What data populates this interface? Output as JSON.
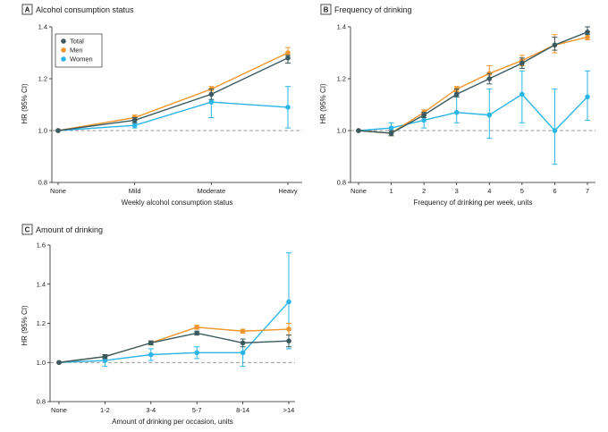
{
  "colors": {
    "Total": "#3a5a60",
    "Men": "#f0962d",
    "Women": "#2bb5e6"
  },
  "chart_data": [
    {
      "panel_label": "A",
      "title": "Alcohol consumption status",
      "type": "line",
      "xlabel": "Weekly alcohol consumption status",
      "ylabel": "HR (95% CI)",
      "categories": [
        "None",
        "Mild",
        "Moderate",
        "Heavy"
      ],
      "ylim": [
        0.8,
        1.4
      ],
      "yticks": [
        "0.8",
        "1.0",
        "1.2",
        "1.4"
      ],
      "reference_line": 1.0,
      "legend": {
        "placement": "top-left",
        "entries": [
          "Total",
          "Men",
          "Women"
        ]
      },
      "series": [
        {
          "name": "Total",
          "values": [
            1.0,
            1.04,
            1.14,
            1.28
          ],
          "lower": [
            1.0,
            1.03,
            1.12,
            1.26
          ],
          "upper": [
            1.0,
            1.05,
            1.16,
            1.29
          ]
        },
        {
          "name": "Men",
          "values": [
            1.0,
            1.05,
            1.16,
            1.3
          ],
          "lower": [
            1.0,
            1.04,
            1.14,
            1.29
          ],
          "upper": [
            1.0,
            1.06,
            1.17,
            1.32
          ]
        },
        {
          "name": "Women",
          "values": [
            1.0,
            1.02,
            1.11,
            1.09
          ],
          "lower": [
            1.0,
            1.01,
            1.05,
            1.01
          ],
          "upper": [
            1.0,
            1.03,
            1.16,
            1.17
          ]
        }
      ]
    },
    {
      "panel_label": "B",
      "title": "Frequency of drinking",
      "type": "line",
      "xlabel": "Frequency of drinking per week, units",
      "ylabel": "HR (95% CI)",
      "categories": [
        "None",
        "1",
        "2",
        "3",
        "4",
        "5",
        "6",
        "7"
      ],
      "ylim": [
        0.8,
        1.4
      ],
      "yticks": [
        "0.8",
        "1.0",
        "1.2",
        "1.4"
      ],
      "reference_line": 1.0,
      "series": [
        {
          "name": "Total",
          "values": [
            1.0,
            0.99,
            1.06,
            1.14,
            1.2,
            1.26,
            1.33,
            1.38
          ],
          "lower": [
            1.0,
            0.98,
            1.05,
            1.13,
            1.18,
            1.24,
            1.31,
            1.37
          ],
          "upper": [
            1.0,
            1.0,
            1.07,
            1.16,
            1.22,
            1.28,
            1.36,
            1.4
          ]
        },
        {
          "name": "Men",
          "values": [
            1.0,
            0.99,
            1.07,
            1.16,
            1.22,
            1.27,
            1.33,
            1.36
          ],
          "lower": [
            1.0,
            0.98,
            1.06,
            1.15,
            1.2,
            1.25,
            1.3,
            1.35
          ],
          "upper": [
            1.0,
            1.0,
            1.08,
            1.17,
            1.25,
            1.29,
            1.37,
            1.38
          ]
        },
        {
          "name": "Women",
          "values": [
            1.0,
            1.01,
            1.04,
            1.07,
            1.06,
            1.14,
            1.0,
            1.13
          ],
          "lower": [
            1.0,
            0.99,
            1.01,
            1.03,
            0.97,
            1.03,
            0.87,
            1.04
          ],
          "upper": [
            1.0,
            1.03,
            1.07,
            1.13,
            1.16,
            1.23,
            1.16,
            1.23
          ]
        }
      ]
    },
    {
      "panel_label": "C",
      "title": "Amount of drinking",
      "type": "line",
      "xlabel": "Amount of drinking per occasion, units",
      "ylabel": "HR (95% CI)",
      "categories": [
        "None",
        "1-2",
        "3-4",
        "5-7",
        "8-14",
        ">14"
      ],
      "ylim": [
        0.8,
        1.6
      ],
      "yticks": [
        "0.8",
        "1.0",
        "1.2",
        "1.4",
        "1.6"
      ],
      "reference_line": 1.0,
      "series": [
        {
          "name": "Total",
          "values": [
            1.0,
            1.03,
            1.1,
            1.15,
            1.1,
            1.11
          ],
          "lower": [
            1.0,
            1.02,
            1.09,
            1.14,
            1.08,
            1.08
          ],
          "upper": [
            1.0,
            1.04,
            1.11,
            1.16,
            1.12,
            1.14
          ]
        },
        {
          "name": "Men",
          "values": [
            1.0,
            1.03,
            1.1,
            1.18,
            1.16,
            1.17
          ],
          "lower": [
            1.0,
            1.02,
            1.09,
            1.17,
            1.15,
            1.14
          ],
          "upper": [
            1.0,
            1.04,
            1.11,
            1.19,
            1.17,
            1.2
          ]
        },
        {
          "name": "Women",
          "values": [
            1.0,
            1.01,
            1.04,
            1.05,
            1.05,
            1.31
          ],
          "lower": [
            1.0,
            0.98,
            1.01,
            1.02,
            0.98,
            1.07
          ],
          "upper": [
            1.0,
            1.03,
            1.07,
            1.08,
            1.12,
            1.56
          ]
        }
      ]
    }
  ]
}
